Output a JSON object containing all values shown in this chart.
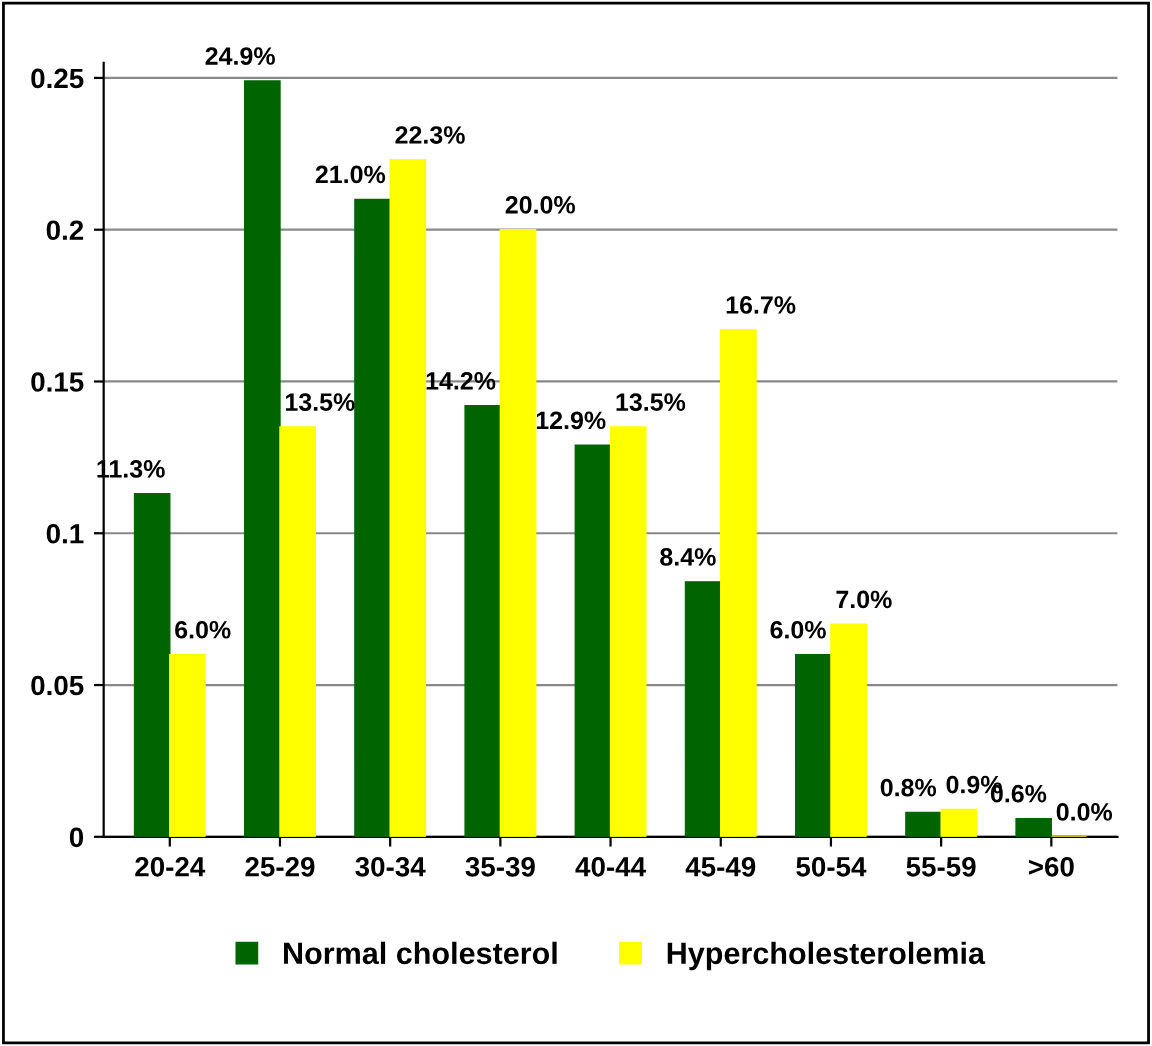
{
  "chart_data": {
    "type": "bar",
    "categories": [
      "20-24",
      "25-29",
      "30-34",
      "35-39",
      "40-44",
      "45-49",
      "50-54",
      "55-59",
      ">60"
    ],
    "series": [
      {
        "name": "Normal cholesterol",
        "color": "#006400",
        "values": [
          0.113,
          0.249,
          0.21,
          0.142,
          0.129,
          0.084,
          0.06,
          0.008,
          0.006
        ],
        "value_labels": [
          "11.3%",
          "24.9%",
          "21.0%",
          "14.2%",
          "12.9%",
          "8.4%",
          "6.0%",
          "0.8%",
          "0.6%"
        ]
      },
      {
        "name": "Hypercholesterolemia",
        "color": "#ffff00",
        "values": [
          0.06,
          0.135,
          0.223,
          0.2,
          0.135,
          0.167,
          0.07,
          0.009,
          0.0
        ],
        "value_labels": [
          "6.0%",
          "13.5%",
          "22.3%",
          "20.0%",
          "13.5%",
          "16.7%",
          "7.0%",
          "0.9%",
          "0.0%"
        ]
      }
    ],
    "ylim": [
      0,
      0.255
    ],
    "yticks": [
      0,
      0.05,
      0.1,
      0.15,
      0.2,
      0.25
    ],
    "grid": "y",
    "legend": "bottom"
  }
}
